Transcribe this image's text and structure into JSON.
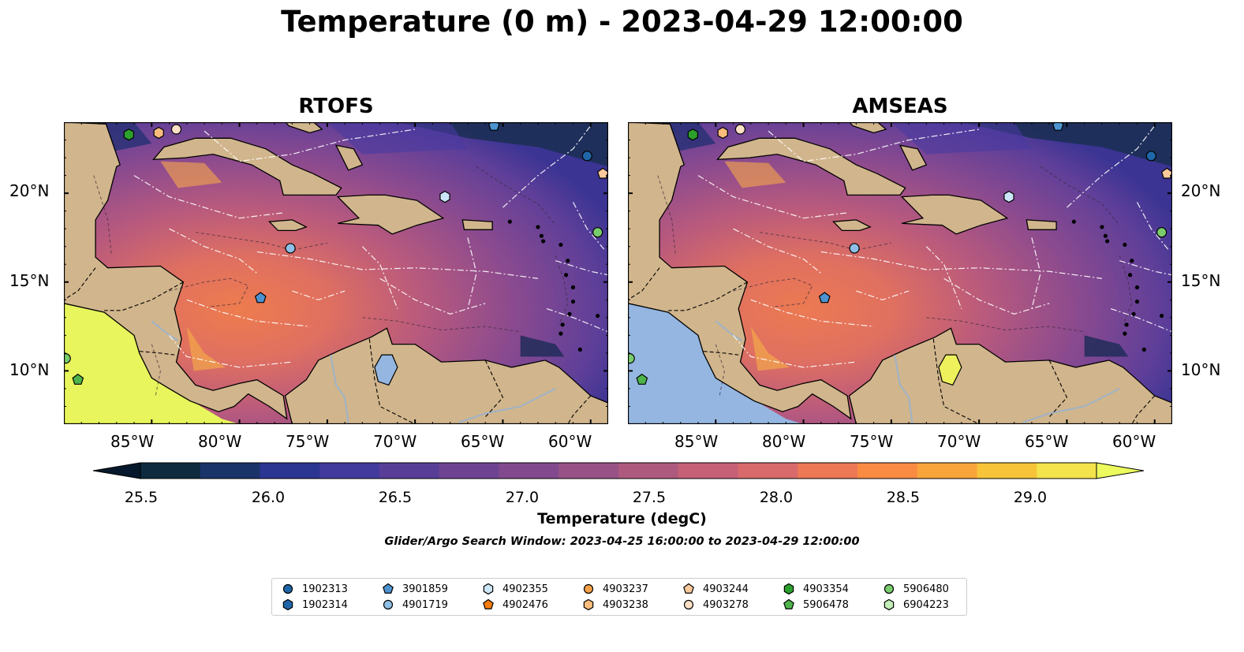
{
  "title": "Temperature (0 m) - 2023-04-29 12:00:00",
  "panels": [
    {
      "title": "RTOFS",
      "pacific_fill": "#e8f55c"
    },
    {
      "title": "AMSEAS",
      "pacific_fill": "#94b6e0"
    }
  ],
  "axes": {
    "lon_ticks": [
      "85°W",
      "80°W",
      "75°W",
      "70°W",
      "65°W",
      "60°W"
    ],
    "lat_ticks": [
      "20°N",
      "15°N",
      "10°N"
    ],
    "lon_range": [
      -90,
      -59
    ],
    "lat_range": [
      7,
      24
    ]
  },
  "colorbar": {
    "label": "Temperature (degC)",
    "ticks": [
      "25.5",
      "26.0",
      "26.5",
      "27.0",
      "27.5",
      "28.0",
      "28.5",
      "29.0"
    ],
    "range": [
      25.5,
      29.25
    ],
    "extend": "both",
    "colors": [
      "#0e2a3e",
      "#1a3369",
      "#2b3592",
      "#433a9e",
      "#593e97",
      "#6e4492",
      "#82498e",
      "#985286",
      "#ae5a7e",
      "#c56077",
      "#d86a6b",
      "#ec7856",
      "#f98b43",
      "#f9a43b",
      "#f6c339",
      "#f4e34b"
    ]
  },
  "subtitle": "Glider/Argo Search Window: 2023-04-25 16:00:00 to 2023-04-29 12:00:00",
  "colors": {
    "land": "#d1b58c",
    "river": "#9fb3c8",
    "eddy_line": "#ffffff"
  },
  "legend": [
    {
      "id": "1902313",
      "marker": "circle",
      "color": "#1f66a8"
    },
    {
      "id": "1902314",
      "marker": "hexagon",
      "color": "#1f66a8"
    },
    {
      "id": "3901859",
      "marker": "pentagon",
      "color": "#4c93d0"
    },
    {
      "id": "4901719",
      "marker": "circle",
      "color": "#8fbfe6"
    },
    {
      "id": "4902355",
      "marker": "hexagon",
      "color": "#cde6f7"
    },
    {
      "id": "4902476",
      "marker": "pentagon",
      "color": "#f57c0e"
    },
    {
      "id": "4903237",
      "marker": "circle",
      "color": "#f5a14a"
    },
    {
      "id": "4903238",
      "marker": "hexagon",
      "color": "#fbbc7c"
    },
    {
      "id": "4903244",
      "marker": "pentagon",
      "color": "#fcc99c"
    },
    {
      "id": "4903278",
      "marker": "circle",
      "color": "#fde0c5"
    },
    {
      "id": "4903354",
      "marker": "hexagon",
      "color": "#2ca02c"
    },
    {
      "id": "5906478",
      "marker": "pentagon",
      "color": "#4fb44b"
    },
    {
      "id": "5906480",
      "marker": "circle",
      "color": "#79cc6c"
    },
    {
      "id": "6904223",
      "marker": "hexagon",
      "color": "#c4eeb8"
    }
  ],
  "floats": [
    {
      "id": "4903354",
      "lon": -86.3,
      "lat": 23.3
    },
    {
      "id": "4903238",
      "lon": -84.6,
      "lat": 23.4
    },
    {
      "id": "4903278",
      "lon": -83.6,
      "lat": 23.6
    },
    {
      "id": "4901719",
      "lon": -77.1,
      "lat": 16.9
    },
    {
      "id": "3901859",
      "lon": -78.8,
      "lat": 14.1
    },
    {
      "id": "4902355",
      "lon": -68.3,
      "lat": 19.8
    },
    {
      "id": "1902313",
      "lon": -60.2,
      "lat": 22.1
    },
    {
      "id": "4903244",
      "lon": -59.3,
      "lat": 21.1
    },
    {
      "id": "5906480",
      "lon": -59.6,
      "lat": 17.8
    },
    {
      "id": "3901859",
      "lon": -65.5,
      "lat": 23.8
    },
    {
      "id": "5906480",
      "lon": -89.9,
      "lat": 10.7
    },
    {
      "id": "5906478",
      "lon": -89.2,
      "lat": 9.5
    }
  ]
}
